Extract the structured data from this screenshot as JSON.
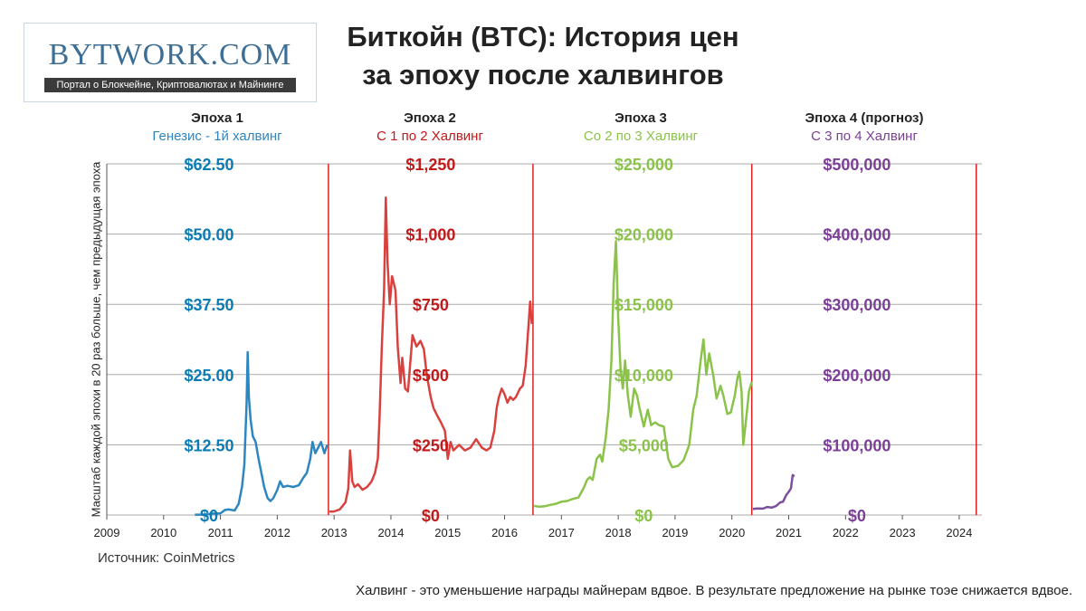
{
  "logo": {
    "text": "BYTWORK.COM",
    "tagline": "Портал о Блокчейне, Криптовалютах и Майнинге"
  },
  "title": {
    "line1": "Биткойн (BTC): История цен",
    "line2": "за эпоху после халвингов"
  },
  "y_axis_label": "Масштаб каждой эпохи в 20 раз больше, чем предыдущая эпоха",
  "source": "Источник: CoinMetrics",
  "footnote": "Халвинг - это уменьшение награды майнерам вдвое. В результате предложение на рынке тоэе снижается вдвое.",
  "colors": {
    "epoch1": "#2e86c1",
    "epoch2": "#d9413f",
    "epoch3": "#8bc34a",
    "epoch4": "#7b4f9e",
    "epoch1_label": "#0b7bb3",
    "epoch2_label": "#c01a1a",
    "epoch3_label": "#8bc34a",
    "epoch4_label": "#7b3f98",
    "halving_line": "#e02020",
    "grid": "#aaaaaa"
  },
  "chart_data": {
    "type": "line",
    "x_axis": {
      "ticks": [
        "2009",
        "2010",
        "2011",
        "2012",
        "2013",
        "2014",
        "2015",
        "2016",
        "2017",
        "2018",
        "2019",
        "2020",
        "2021",
        "2022",
        "2023",
        "2024"
      ],
      "range": [
        2009,
        2024.4
      ]
    },
    "halvings": [
      2012.9,
      2016.5,
      2020.35,
      2024.3
    ],
    "grid_levels": 5,
    "epochs": [
      {
        "name": "Эпоха 1",
        "subtitle": "Генезис - 1й халвинг",
        "y_ticks": [
          "$0",
          "$12.50",
          "$25.00",
          "$37.50",
          "$50.00",
          "$62.50"
        ],
        "y_max": 62.5,
        "label_x": 2010.8,
        "series": [
          [
            2010.55,
            0.06
          ],
          [
            2010.7,
            0.07
          ],
          [
            2010.85,
            0.25
          ],
          [
            2011.0,
            0.3
          ],
          [
            2011.08,
            0.9
          ],
          [
            2011.15,
            1.0
          ],
          [
            2011.25,
            0.8
          ],
          [
            2011.32,
            2
          ],
          [
            2011.38,
            5
          ],
          [
            2011.42,
            9
          ],
          [
            2011.46,
            20
          ],
          [
            2011.48,
            29
          ],
          [
            2011.5,
            21
          ],
          [
            2011.53,
            17
          ],
          [
            2011.57,
            14
          ],
          [
            2011.62,
            13
          ],
          [
            2011.67,
            10
          ],
          [
            2011.72,
            7.5
          ],
          [
            2011.77,
            5
          ],
          [
            2011.83,
            3
          ],
          [
            2011.88,
            2.5
          ],
          [
            2011.93,
            3
          ],
          [
            2012.0,
            4.5
          ],
          [
            2012.05,
            6
          ],
          [
            2012.1,
            5
          ],
          [
            2012.18,
            5.2
          ],
          [
            2012.28,
            5
          ],
          [
            2012.38,
            5.3
          ],
          [
            2012.45,
            6.5
          ],
          [
            2012.52,
            7.5
          ],
          [
            2012.58,
            10
          ],
          [
            2012.62,
            13
          ],
          [
            2012.67,
            11
          ],
          [
            2012.72,
            12
          ],
          [
            2012.77,
            13
          ],
          [
            2012.83,
            11
          ],
          [
            2012.88,
            12.5
          ]
        ]
      },
      {
        "name": "Эпоха 2",
        "subtitle": "С 1 по 2 Халвинг",
        "y_ticks": [
          "$0",
          "$250",
          "$500",
          "$750",
          "$1,000",
          "$1,250"
        ],
        "y_max": 1250,
        "label_x": 2014.7,
        "series": [
          [
            2012.92,
            12
          ],
          [
            2013.0,
            13
          ],
          [
            2013.1,
            20
          ],
          [
            2013.2,
            45
          ],
          [
            2013.25,
            95
          ],
          [
            2013.28,
            230
          ],
          [
            2013.32,
            120
          ],
          [
            2013.36,
            100
          ],
          [
            2013.42,
            110
          ],
          [
            2013.5,
            90
          ],
          [
            2013.58,
            100
          ],
          [
            2013.66,
            120
          ],
          [
            2013.72,
            150
          ],
          [
            2013.77,
            200
          ],
          [
            2013.8,
            350
          ],
          [
            2013.84,
            600
          ],
          [
            2013.88,
            800
          ],
          [
            2013.91,
            1130
          ],
          [
            2013.94,
            900
          ],
          [
            2013.98,
            750
          ],
          [
            2014.02,
            850
          ],
          [
            2014.08,
            800
          ],
          [
            2014.12,
            600
          ],
          [
            2014.17,
            470
          ],
          [
            2014.2,
            560
          ],
          [
            2014.25,
            450
          ],
          [
            2014.3,
            440
          ],
          [
            2014.38,
            640
          ],
          [
            2014.45,
            600
          ],
          [
            2014.52,
            620
          ],
          [
            2014.58,
            590
          ],
          [
            2014.63,
            500
          ],
          [
            2014.7,
            420
          ],
          [
            2014.75,
            380
          ],
          [
            2014.8,
            360
          ],
          [
            2014.88,
            330
          ],
          [
            2014.95,
            300
          ],
          [
            2015.0,
            200
          ],
          [
            2015.05,
            260
          ],
          [
            2015.1,
            230
          ],
          [
            2015.2,
            250
          ],
          [
            2015.3,
            230
          ],
          [
            2015.4,
            240
          ],
          [
            2015.5,
            270
          ],
          [
            2015.6,
            240
          ],
          [
            2015.68,
            230
          ],
          [
            2015.75,
            240
          ],
          [
            2015.82,
            300
          ],
          [
            2015.86,
            380
          ],
          [
            2015.9,
            420
          ],
          [
            2015.95,
            450
          ],
          [
            2016.0,
            430
          ],
          [
            2016.05,
            400
          ],
          [
            2016.1,
            420
          ],
          [
            2016.15,
            410
          ],
          [
            2016.2,
            420
          ],
          [
            2016.27,
            450
          ],
          [
            2016.32,
            460
          ],
          [
            2016.37,
            530
          ],
          [
            2016.42,
            670
          ],
          [
            2016.45,
            760
          ],
          [
            2016.48,
            680
          ]
        ]
      },
      {
        "name": "Эпоха 3",
        "subtitle": "Со 2 по 3 Халвинг",
        "y_ticks": [
          "$0",
          "$5,000",
          "$10,000",
          "$15,000",
          "$20,000",
          "$25,000"
        ],
        "y_max": 25000,
        "label_x": 2018.45,
        "series": [
          [
            2016.52,
            650
          ],
          [
            2016.6,
            600
          ],
          [
            2016.7,
            620
          ],
          [
            2016.8,
            720
          ],
          [
            2016.9,
            800
          ],
          [
            2017.0,
            950
          ],
          [
            2017.1,
            1000
          ],
          [
            2017.2,
            1150
          ],
          [
            2017.3,
            1250
          ],
          [
            2017.4,
            2000
          ],
          [
            2017.45,
            2500
          ],
          [
            2017.5,
            2700
          ],
          [
            2017.55,
            2500
          ],
          [
            2017.62,
            4000
          ],
          [
            2017.68,
            4300
          ],
          [
            2017.72,
            3800
          ],
          [
            2017.78,
            5500
          ],
          [
            2017.83,
            7500
          ],
          [
            2017.88,
            11000
          ],
          [
            2017.92,
            16500
          ],
          [
            2017.96,
            19500
          ],
          [
            2018.0,
            14000
          ],
          [
            2018.04,
            10500
          ],
          [
            2018.08,
            9000
          ],
          [
            2018.12,
            11000
          ],
          [
            2018.17,
            8500
          ],
          [
            2018.22,
            7000
          ],
          [
            2018.28,
            9000
          ],
          [
            2018.33,
            8500
          ],
          [
            2018.38,
            7500
          ],
          [
            2018.45,
            6300
          ],
          [
            2018.52,
            7500
          ],
          [
            2018.58,
            6400
          ],
          [
            2018.65,
            6600
          ],
          [
            2018.72,
            6400
          ],
          [
            2018.8,
            6300
          ],
          [
            2018.88,
            4000
          ],
          [
            2018.95,
            3400
          ],
          [
            2019.05,
            3500
          ],
          [
            2019.15,
            3900
          ],
          [
            2019.25,
            5000
          ],
          [
            2019.32,
            7500
          ],
          [
            2019.38,
            8500
          ],
          [
            2019.45,
            11000
          ],
          [
            2019.5,
            12500
          ],
          [
            2019.55,
            10000
          ],
          [
            2019.6,
            11500
          ],
          [
            2019.67,
            10000
          ],
          [
            2019.73,
            8300
          ],
          [
            2019.8,
            9200
          ],
          [
            2019.85,
            8500
          ],
          [
            2019.92,
            7200
          ],
          [
            2019.98,
            7300
          ],
          [
            2020.05,
            8500
          ],
          [
            2020.1,
            9800
          ],
          [
            2020.13,
            10200
          ],
          [
            2020.17,
            8800
          ],
          [
            2020.2,
            5000
          ],
          [
            2020.25,
            6800
          ],
          [
            2020.3,
            8800
          ],
          [
            2020.35,
            9500
          ]
        ]
      },
      {
        "name": "Эпоха 4 (прогноз)",
        "subtitle": "С 3 по 4 Халвинг",
        "y_ticks": [
          "$0",
          "$100,000",
          "$200,000",
          "$300,000",
          "$400,000",
          "$500,000"
        ],
        "y_max": 500000,
        "label_x": 2022.2,
        "series": [
          [
            2020.37,
            8700
          ],
          [
            2020.45,
            9300
          ],
          [
            2020.55,
            9200
          ],
          [
            2020.62,
            11500
          ],
          [
            2020.7,
            10600
          ],
          [
            2020.78,
            13000
          ],
          [
            2020.85,
            18000
          ],
          [
            2020.9,
            19000
          ],
          [
            2020.96,
            29000
          ],
          [
            2021.0,
            33000
          ],
          [
            2021.04,
            38000
          ],
          [
            2021.07,
            57000
          ],
          [
            2021.1,
            55000
          ]
        ]
      }
    ]
  }
}
